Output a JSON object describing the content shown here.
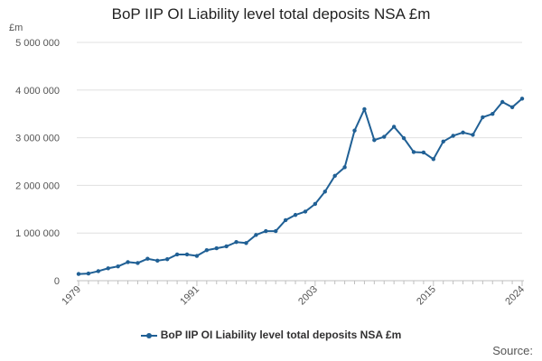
{
  "chart_data": {
    "type": "line",
    "title": "BoP IIP OI Liability level total deposits NSA £m",
    "ylabel": "£m",
    "xlabel": "",
    "x_range": [
      1979,
      2024
    ],
    "ylim": [
      0,
      5000000
    ],
    "y_ticks": [
      0,
      1000000,
      2000000,
      3000000,
      4000000,
      5000000
    ],
    "y_tick_labels": [
      "0",
      "1 000 000",
      "2 000 000",
      "3 000 000",
      "4 000 000",
      "5 000 000"
    ],
    "x_ticks": [
      1979,
      1991,
      2003,
      2015,
      2024
    ],
    "x_tick_labels": [
      "1979",
      "1991",
      "2003",
      "2015",
      "2024"
    ],
    "grid": true,
    "legend_position": "bottom",
    "color": "#206095",
    "series": [
      {
        "name": "BoP IIP OI Liability level total deposits NSA £m",
        "x": [
          1979,
          1980,
          1981,
          1982,
          1983,
          1984,
          1985,
          1986,
          1987,
          1988,
          1989,
          1990,
          1991,
          1992,
          1993,
          1994,
          1995,
          1996,
          1997,
          1998,
          1999,
          2000,
          2001,
          2002,
          2003,
          2004,
          2005,
          2006,
          2007,
          2008,
          2009,
          2010,
          2011,
          2012,
          2013,
          2014,
          2015,
          2016,
          2017,
          2018,
          2019,
          2020,
          2021,
          2022,
          2023,
          2024
        ],
        "values": [
          140000,
          150000,
          200000,
          260000,
          300000,
          390000,
          370000,
          460000,
          420000,
          450000,
          550000,
          550000,
          520000,
          640000,
          680000,
          720000,
          810000,
          790000,
          960000,
          1040000,
          1040000,
          1270000,
          1380000,
          1450000,
          1610000,
          1870000,
          2200000,
          2380000,
          3150000,
          3600000,
          2950000,
          3020000,
          3230000,
          2990000,
          2700000,
          2690000,
          2550000,
          2920000,
          3040000,
          3110000,
          3060000,
          3430000,
          3500000,
          3750000,
          3640000,
          3820000
        ]
      }
    ]
  },
  "source_label": "Source:"
}
